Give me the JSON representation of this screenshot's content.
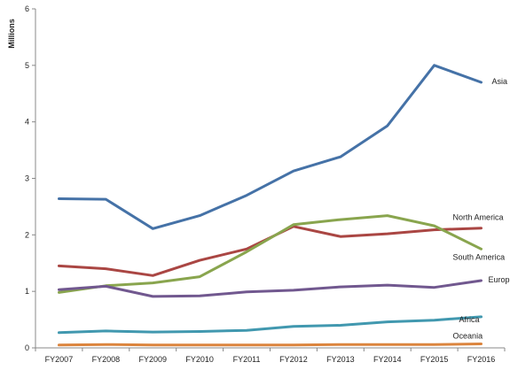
{
  "chart_data": {
    "type": "line",
    "title": "",
    "xlabel": "",
    "ylabel": "Millions",
    "ylim": [
      0,
      6
    ],
    "yticks": [
      0,
      1,
      2,
      3,
      4,
      5,
      6
    ],
    "grid": false,
    "legend": "inline-right",
    "categories": [
      "FY2007",
      "FY2008",
      "FY2009",
      "FY2010",
      "FY2011",
      "FY2012",
      "FY2013",
      "FY2014",
      "FY2015",
      "FY2016"
    ],
    "series": [
      {
        "name": "Asia",
        "color": "#4572A7",
        "values": [
          2.64,
          2.63,
          2.11,
          2.34,
          2.7,
          3.13,
          3.38,
          3.93,
          5.0,
          4.7
        ]
      },
      {
        "name": "North America",
        "color": "#AA4643",
        "values": [
          1.45,
          1.4,
          1.28,
          1.55,
          1.75,
          2.15,
          1.97,
          2.02,
          2.09,
          2.12
        ]
      },
      {
        "name": "South America",
        "color": "#89A54E",
        "values": [
          0.98,
          1.1,
          1.15,
          1.26,
          1.7,
          2.18,
          2.27,
          2.34,
          2.16,
          1.75
        ]
      },
      {
        "name": "Europe",
        "color": "#71588F",
        "values": [
          1.03,
          1.09,
          0.91,
          0.92,
          0.99,
          1.02,
          1.08,
          1.11,
          1.07,
          1.19
        ]
      },
      {
        "name": "Africa",
        "color": "#4198AF",
        "values": [
          0.27,
          0.3,
          0.28,
          0.29,
          0.31,
          0.38,
          0.4,
          0.46,
          0.49,
          0.55
        ]
      },
      {
        "name": "Oceania",
        "color": "#DB843D",
        "values": [
          0.05,
          0.06,
          0.05,
          0.05,
          0.05,
          0.05,
          0.06,
          0.06,
          0.06,
          0.07
        ]
      }
    ]
  }
}
